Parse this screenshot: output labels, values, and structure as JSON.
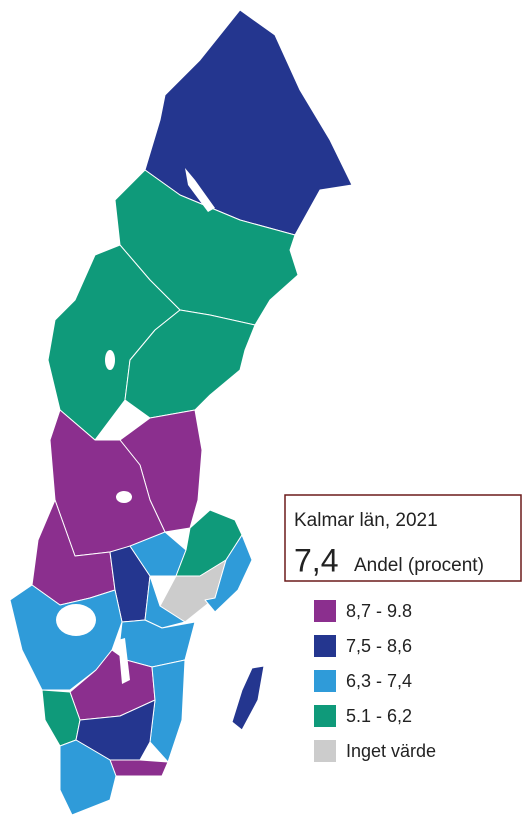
{
  "tooltip": {
    "title": "Kalmar län, 2021",
    "value": "7,4",
    "unit": "Andel (procent)"
  },
  "legend": [
    {
      "label": "8,7 - 9.8",
      "color": "#8b2f8e"
    },
    {
      "label": "7,5 - 8,6",
      "color": "#24368f"
    },
    {
      "label": "6,3 - 7,4",
      "color": "#2f9bd9"
    },
    {
      "label": "5.1 - 6,2",
      "color": "#0f9a7a"
    },
    {
      "label": "Inget värde",
      "color": "#cccccc"
    }
  ]
}
